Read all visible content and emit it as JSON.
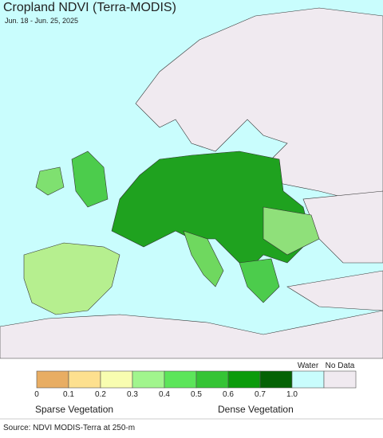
{
  "header": {
    "title": "Cropland NDVI (Terra-MODIS)",
    "subtitle": "Jun. 18 - Jun. 25, 2025"
  },
  "legend": {
    "colors": [
      "#e8ad63",
      "#fde08f",
      "#f8fdb0",
      "#a1f58d",
      "#5ce55a",
      "#35c435",
      "#0b9b0b",
      "#056205",
      "#c9fdfd",
      "#f0eaf0"
    ],
    "ticks": [
      "0",
      "0.1",
      "0.2",
      "0.3",
      "0.4",
      "0.5",
      "0.6",
      "0.7",
      "1.0"
    ],
    "water": "Water",
    "no_data": "No Data",
    "sparse": "Sparse Vegetation",
    "dense": "Dense Vegetation"
  },
  "footer": {
    "source": "Source: NDVI MODIS-Terra at 250-m"
  }
}
